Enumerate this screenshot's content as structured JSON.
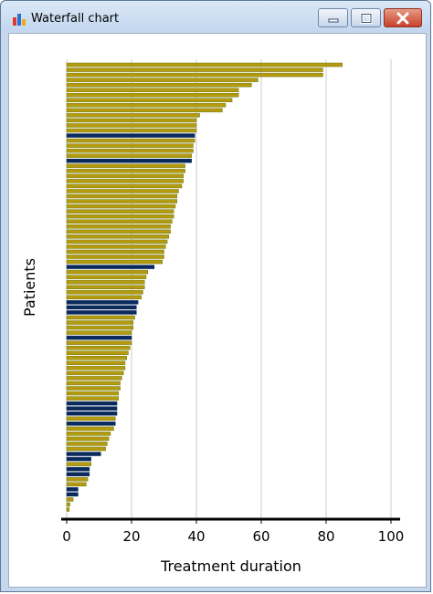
{
  "window": {
    "title": "Waterfall chart",
    "icon": "bar-chart-icon",
    "controls": {
      "minimize": "minimize-icon",
      "maximize": "maximize-icon",
      "close": "close-icon"
    }
  },
  "colors": {
    "bar_gold": "#b59a10",
    "bar_gold_edge": "#6b7a10",
    "bar_navy": "#0b2a5c",
    "grid": "#cccccc",
    "axis": "#000000"
  },
  "chart_data": {
    "type": "bar",
    "orientation": "horizontal",
    "xlabel": "Treatment duration",
    "ylabel": "Patients",
    "xlim": [
      0,
      100
    ],
    "xticks": [
      0,
      20,
      40,
      60,
      80,
      100
    ],
    "grid": true,
    "series": [
      {
        "values": [
          85,
          79,
          79,
          59,
          57,
          53,
          53,
          51,
          49,
          48,
          41,
          40,
          40,
          40,
          39.5,
          39.5,
          39,
          39,
          38.5,
          38.5,
          36.5,
          36.5,
          36,
          36,
          35.5,
          34.5,
          34,
          34,
          33.5,
          33,
          33,
          32.5,
          32,
          32,
          31.5,
          31,
          30.5,
          30,
          30,
          29.5,
          27,
          25,
          24.5,
          24,
          24,
          23.5,
          23,
          22,
          21.5,
          21.5,
          21,
          20.5,
          20.5,
          20,
          20,
          20,
          19.5,
          19,
          18.5,
          18,
          18,
          17.5,
          17,
          16.5,
          16.5,
          16,
          16,
          15.5,
          15.5,
          15.5,
          15,
          15,
          14.5,
          13.5,
          13,
          12.5,
          12,
          10.5,
          7.5,
          7.5,
          7,
          7,
          6.5,
          6,
          3.5,
          3.5,
          2,
          1,
          0.8
        ],
        "highlight": [
          false,
          false,
          false,
          false,
          false,
          false,
          false,
          false,
          false,
          false,
          false,
          false,
          false,
          false,
          true,
          false,
          false,
          false,
          false,
          true,
          false,
          false,
          false,
          false,
          false,
          false,
          false,
          false,
          false,
          false,
          false,
          false,
          false,
          false,
          false,
          false,
          false,
          false,
          false,
          false,
          true,
          false,
          false,
          false,
          false,
          false,
          false,
          true,
          true,
          true,
          false,
          false,
          false,
          false,
          true,
          false,
          false,
          false,
          false,
          false,
          false,
          false,
          false,
          false,
          false,
          false,
          false,
          true,
          true,
          true,
          false,
          true,
          false,
          false,
          false,
          false,
          false,
          true,
          true,
          false,
          true,
          true,
          false,
          false,
          true,
          true,
          false,
          false,
          false
        ]
      }
    ]
  }
}
